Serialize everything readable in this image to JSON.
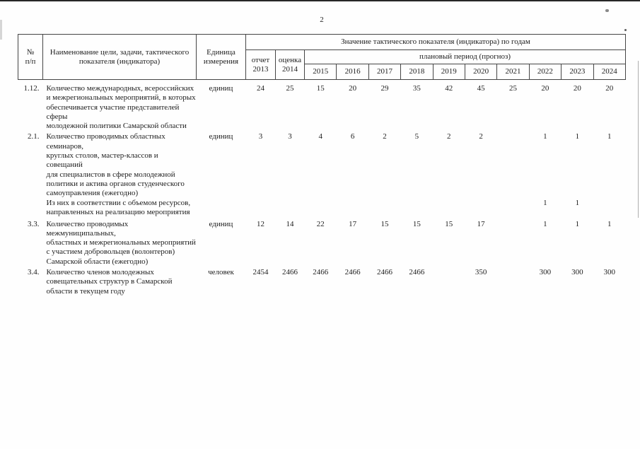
{
  "page": {
    "number": "2"
  },
  "table": {
    "header": {
      "col_num": "№\nп/п",
      "col_name": "Наименование цели, задачи, тактического\nпоказателя (индикатора)",
      "col_unit": "Единица\nизмерения",
      "values_group": "Значение тактического показателя (индикатора) по годам",
      "report": "отчет\n2013",
      "estimate": "оценка\n2014",
      "plan_period": "плановый период (прогноз)",
      "years": [
        "2015",
        "2016",
        "2017",
        "2018",
        "2019",
        "2020",
        "2021",
        "2022",
        "2023",
        "2024"
      ]
    },
    "rows": [
      {
        "num": "1.12.",
        "name": "Количество международных, всероссийских\nи межрегиональных мероприятий, в которых\nобеспечивается участие представителей сферы\nмолодежной политики Самарской области",
        "unit": "единиц",
        "values": [
          "24",
          "25",
          "15",
          "20",
          "29",
          "35",
          "42",
          "45",
          "25",
          "20",
          "20",
          "20"
        ]
      },
      {
        "num": "2.1.",
        "name": "Количество проводимых областных семинаров,\nкруглых столов, мастер-классов и совещаний\nдля специалистов в сфере молодежной\nполитики и актива органов студенческого\nсамоуправления (ежегодно)",
        "unit": "единиц",
        "values": [
          "3",
          "3",
          "4",
          "6",
          "2",
          "5",
          "2",
          "2",
          "",
          "1",
          "1",
          "1"
        ]
      },
      {
        "num": "",
        "name": "Из них в соответствии с объемом ресурсов,\nнаправленных на реализацию мероприятия",
        "unit": "",
        "values": [
          "",
          "",
          "",
          "",
          "",
          "",
          "",
          "",
          "",
          "1",
          "1",
          ""
        ]
      },
      {
        "num": "3.3.",
        "name": "Количество проводимых межмуниципальных,\nобластных и межрегиональных мероприятий\nс участием добровольцев (волонтеров)\nСамарской области (ежегодно)",
        "unit": "единиц",
        "values": [
          "12",
          "14",
          "22",
          "17",
          "15",
          "15",
          "15",
          "17",
          "",
          "1",
          "1",
          "1"
        ]
      },
      {
        "num": "3.4.",
        "name": "Количество членов молодежных\nсовещательных структур в Самарской\nобласти в текущем году",
        "unit": "человек",
        "values": [
          "2454",
          "2466",
          "2466",
          "2466",
          "2466",
          "2466",
          "",
          "350",
          "",
          "300",
          "300",
          "300"
        ]
      }
    ]
  }
}
